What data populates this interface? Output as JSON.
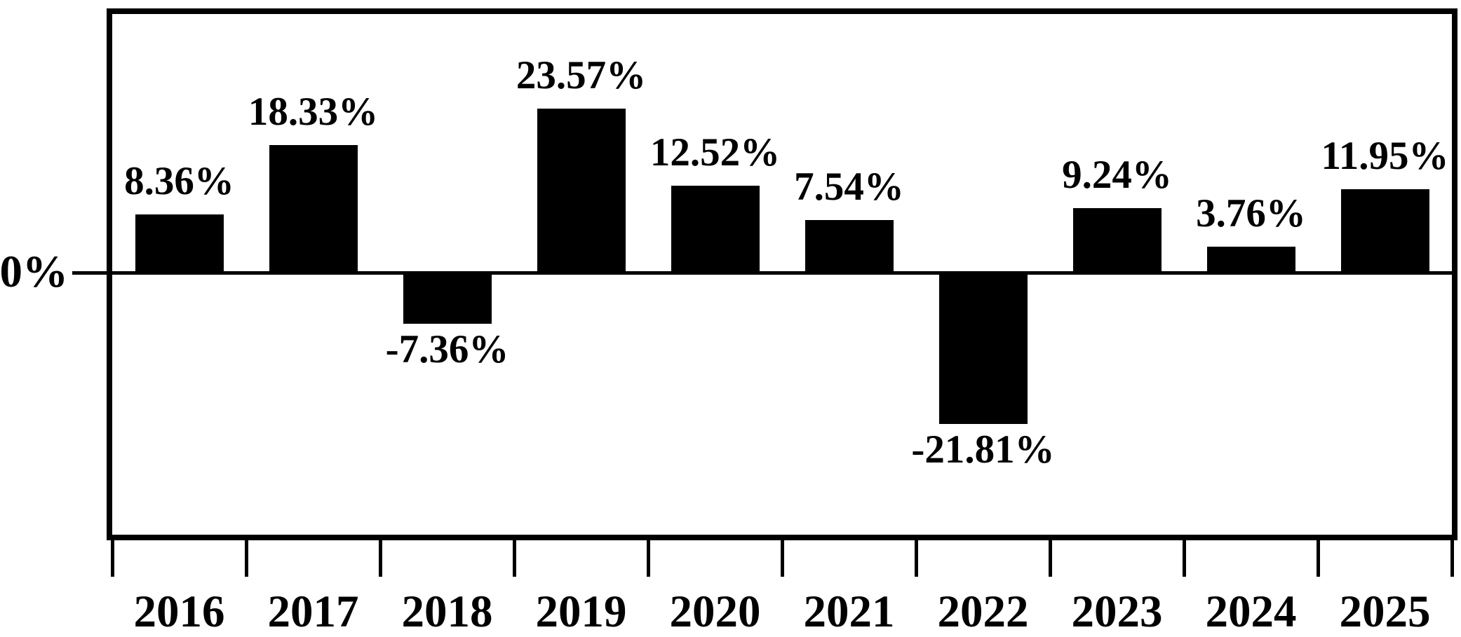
{
  "chart_data": {
    "type": "bar",
    "title": "",
    "xlabel": "",
    "ylabel": "",
    "categories": [
      "2016",
      "2017",
      "2018",
      "2019",
      "2020",
      "2021",
      "2022",
      "2023",
      "2024",
      "2025"
    ],
    "values": [
      8.36,
      18.33,
      -7.36,
      23.57,
      12.52,
      7.54,
      -21.81,
      9.24,
      3.76,
      11.95
    ],
    "bar_labels": [
      "8.36%",
      "18.33%",
      "-7.36%",
      "23.57%",
      "12.52%",
      "7.54%",
      "-21.81%",
      "9.24%",
      "3.76%",
      "11.95%"
    ],
    "zero_tick_label": "0%",
    "ylim": [
      -37.7,
      37.2
    ],
    "grid": false,
    "legend": null,
    "bar_color": "#000000",
    "frame_color": "#000000",
    "background_color": "#ffffff"
  }
}
